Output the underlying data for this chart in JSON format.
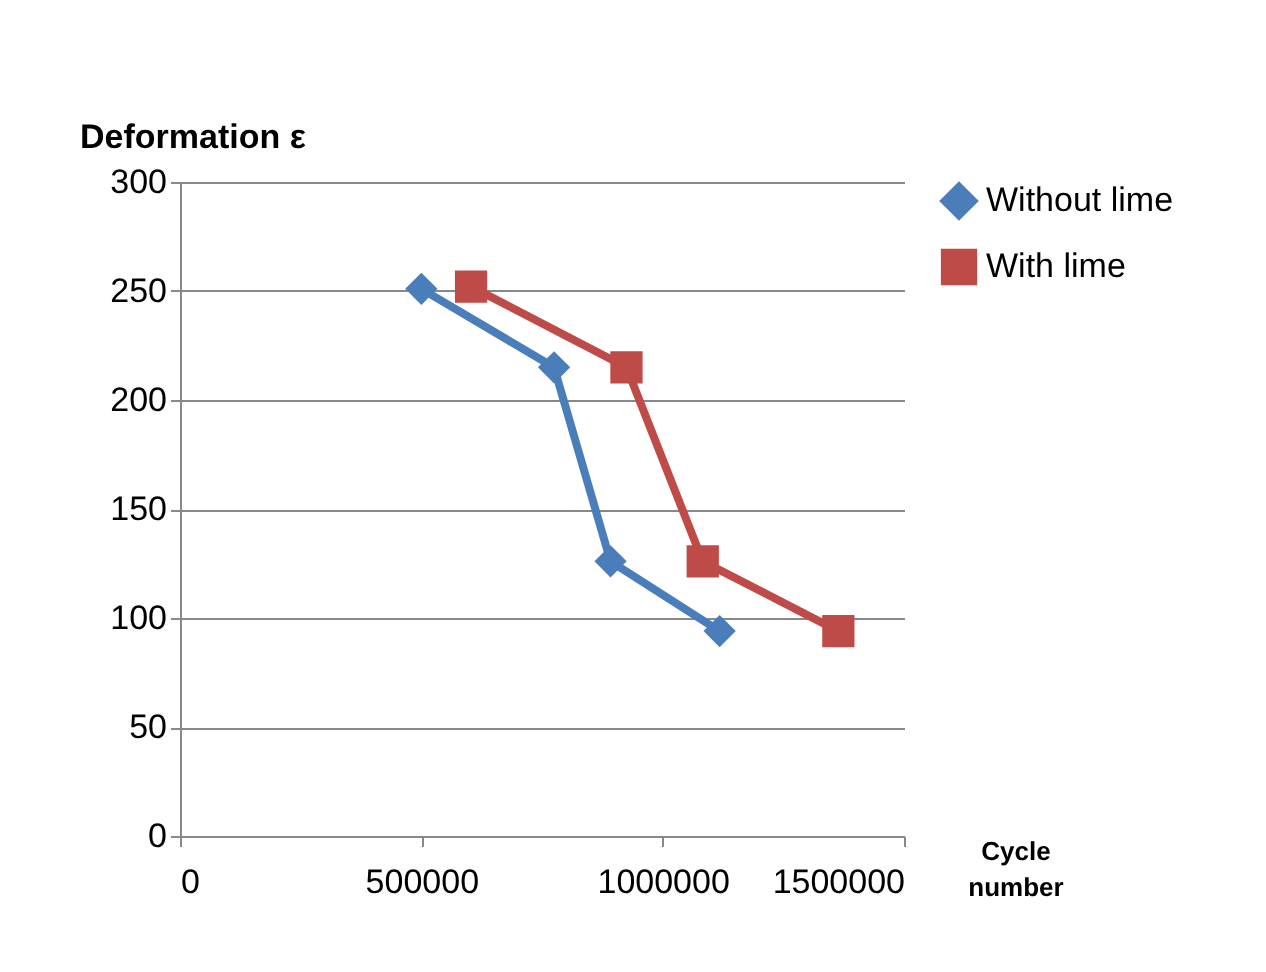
{
  "chart_data": {
    "type": "line",
    "ylabel": "Deformation ε",
    "xlabel": "Cycle number",
    "xlim": [
      0,
      1500000
    ],
    "xticks": [
      0,
      500000,
      1000000,
      1500000
    ],
    "ylim": [
      0,
      300
    ],
    "yticks": [
      0,
      50,
      100,
      150,
      200,
      250,
      300
    ],
    "grid": "y",
    "legend": "right",
    "line_style": "solid",
    "series": [
      {
        "name": "Without lime",
        "color": "#4a7ebb",
        "marker": "diamond",
        "x": [
          500000,
          775000,
          892000,
          1118000
        ],
        "values": [
          251,
          215,
          126,
          94
        ]
      },
      {
        "name": "With lime",
        "color": "#be4b48",
        "marker": "square",
        "x": [
          603000,
          925000,
          1083000,
          1364000
        ],
        "values": [
          252,
          215,
          126,
          94
        ]
      }
    ]
  }
}
